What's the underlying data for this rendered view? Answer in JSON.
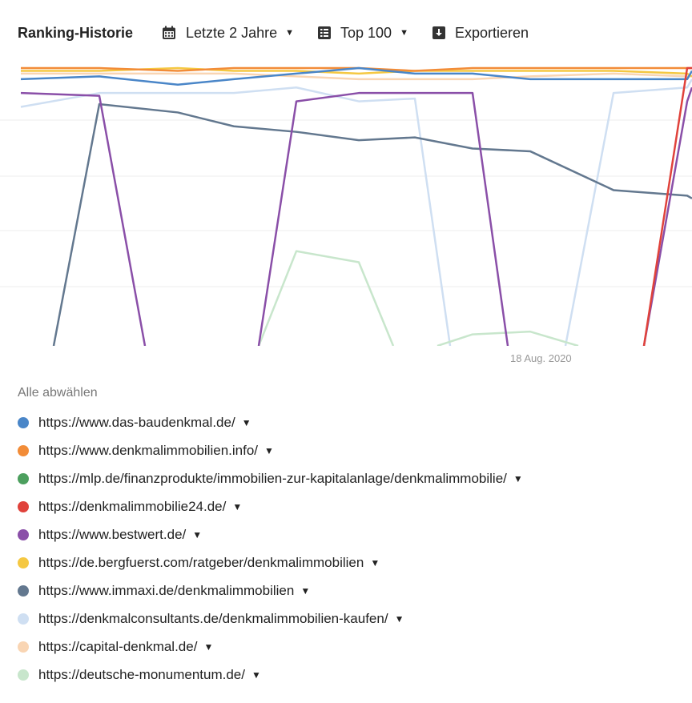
{
  "toolbar": {
    "title": "Ranking-Historie",
    "period_label": "Letzte 2 Jahre",
    "top_label": "Top 100",
    "export_label": "Exportieren",
    "icons": [
      "calendar-icon",
      "list-icon",
      "download-icon"
    ]
  },
  "chart_data": {
    "type": "line",
    "x_axis": {
      "label_text": "18 Aug. 2020"
    },
    "y_axis": {
      "reversed": true,
      "ylim": [
        1,
        100
      ],
      "tick_labels_visible": false
    },
    "grid": true,
    "series": [
      {
        "name": "https://www.das-baudenkmal.de/",
        "color": "#4a86c8",
        "values": [
          5,
          4,
          7,
          5,
          3,
          1,
          3,
          3,
          5,
          5,
          5,
          2
        ]
      },
      {
        "name": "https://www.denkmalimmobilien.info/",
        "color": "#f28c38",
        "values": [
          1,
          1,
          2,
          1,
          1,
          1,
          2,
          1,
          1,
          1,
          1,
          1
        ]
      },
      {
        "name": "https://mlp.de/finanzprodukte/immobilien-zur-kapitalanlage/denkmalimmobilie/",
        "color": "#4c9f5e",
        "values": [
          null,
          null,
          null,
          null,
          null,
          null,
          null,
          null,
          null,
          null,
          null,
          null
        ]
      },
      {
        "name": "https://denkmalimmobilie24.de/",
        "color": "#e0423b",
        "values": [
          null,
          null,
          null,
          null,
          null,
          null,
          null,
          null,
          null,
          null,
          1,
          1
        ]
      },
      {
        "name": "https://www.bestwert.de/",
        "color": "#8a4fa8",
        "values": [
          10,
          11,
          null,
          null,
          13,
          10,
          10,
          10,
          null,
          null,
          13,
          8
        ]
      },
      {
        "name": "https://de.bergfuerst.com/ratgeber/denkmalimmobilien",
        "color": "#f5c842",
        "values": [
          2,
          2,
          1,
          2,
          2,
          3,
          2,
          2,
          2,
          2,
          3,
          4
        ]
      },
      {
        "name": "https://www.immaxi.de/denkmalimmobilien",
        "color": "#63788f",
        "values": [
          null,
          14,
          17,
          22,
          24,
          27,
          26,
          30,
          31,
          45,
          47,
          48
        ]
      },
      {
        "name": "https://denkmalconsultants.de/denkmalimmobilien-kaufen/",
        "color": "#cfdff2",
        "values": [
          15,
          10,
          10,
          10,
          8,
          13,
          12,
          null,
          null,
          10,
          8,
          5
        ]
      },
      {
        "name": "https://capital-denkmal.de/",
        "color": "#f9d5b3",
        "values": [
          3,
          3,
          3,
          3,
          4,
          5,
          5,
          5,
          4,
          3,
          4,
          4
        ]
      },
      {
        "name": "https://deutsche-monumentum.de/",
        "color": "#c8e6cc",
        "values": [
          null,
          null,
          null,
          null,
          67,
          71,
          null,
          97,
          96,
          null,
          null,
          null
        ]
      }
    ]
  },
  "legend": {
    "deselect_label": "Alle abwählen",
    "items": [
      {
        "label": "https://www.das-baudenkmal.de/",
        "color": "#4a86c8"
      },
      {
        "label": "https://www.denkmalimmobilien.info/",
        "color": "#f28c38"
      },
      {
        "label": "https://mlp.de/finanzprodukte/immobilien-zur-kapitalanlage/denkmalimmobilie/",
        "color": "#4c9f5e"
      },
      {
        "label": "https://denkmalimmobilie24.de/",
        "color": "#e0423b"
      },
      {
        "label": "https://www.bestwert.de/",
        "color": "#8a4fa8"
      },
      {
        "label": "https://de.bergfuerst.com/ratgeber/denkmalimmobilien",
        "color": "#f5c842"
      },
      {
        "label": "https://www.immaxi.de/denkmalimmobilien",
        "color": "#63788f"
      },
      {
        "label": "https://denkmalconsultants.de/denkmalimmobilien-kaufen/",
        "color": "#cfdff2"
      },
      {
        "label": "https://capital-denkmal.de/",
        "color": "#f9d5b3"
      },
      {
        "label": "https://deutsche-monumentum.de/",
        "color": "#c8e6cc"
      }
    ]
  }
}
